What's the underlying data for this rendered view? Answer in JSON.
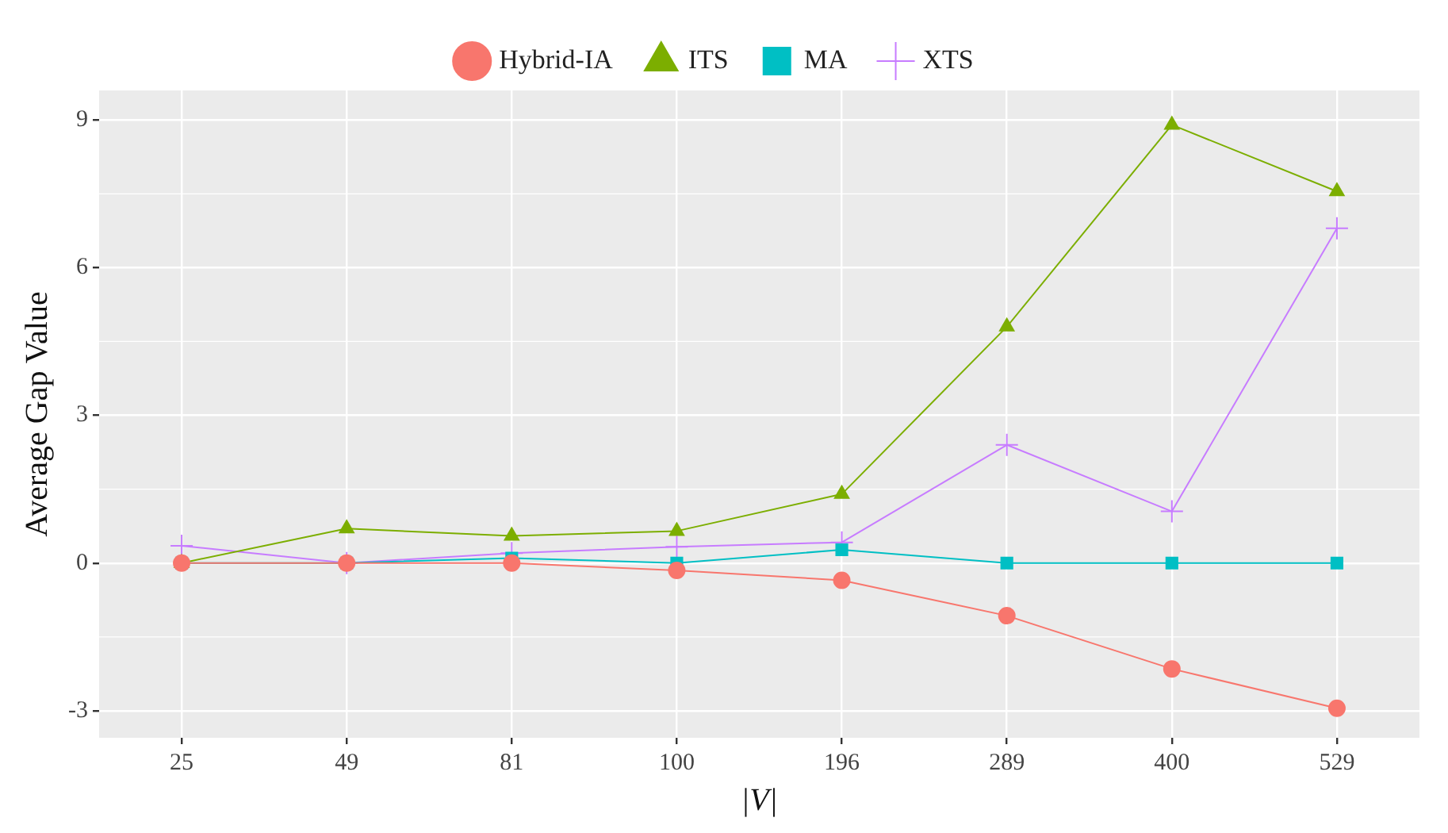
{
  "chart_data": {
    "type": "line",
    "xlabel": "|V|",
    "ylabel": "Average Gap Value",
    "categories": [
      "25",
      "49",
      "81",
      "100",
      "196",
      "289",
      "400",
      "529"
    ],
    "series": [
      {
        "name": "Hybrid-IA",
        "color": "#f8766d",
        "marker": "circle",
        "values": [
          0,
          0,
          0,
          -0.15,
          -0.35,
          -1.07,
          -2.15,
          -2.95
        ]
      },
      {
        "name": "ITS",
        "color": "#7cae00",
        "marker": "triangle",
        "values": [
          0,
          0.7,
          0.55,
          0.65,
          1.4,
          4.8,
          8.9,
          7.55
        ]
      },
      {
        "name": "MA",
        "color": "#00bfc4",
        "marker": "square",
        "values": [
          0,
          0,
          0.1,
          0,
          0.27,
          0,
          0,
          0
        ]
      },
      {
        "name": "XTS",
        "color": "#c77cff",
        "marker": "cross",
        "values": [
          0.35,
          0,
          0.2,
          0.33,
          0.42,
          2.4,
          1.05,
          6.8
        ]
      }
    ],
    "ylim": [
      -3.55,
      9.6
    ],
    "yticks": [
      -3,
      0,
      3,
      6,
      9
    ],
    "grid": true,
    "legend": "top",
    "line_style": "solid"
  }
}
